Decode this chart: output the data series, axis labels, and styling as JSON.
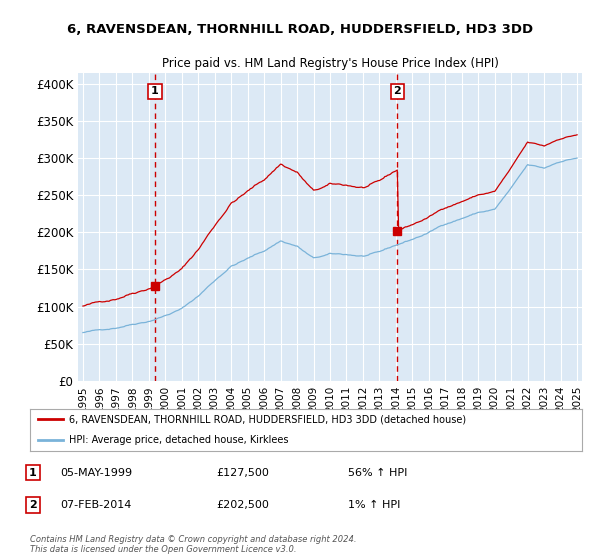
{
  "title1": "6, RAVENSDEAN, THORNHILL ROAD, HUDDERSFIELD, HD3 3DD",
  "title2": "Price paid vs. HM Land Registry's House Price Index (HPI)",
  "ylabel_ticks": [
    "£0",
    "£50K",
    "£100K",
    "£150K",
    "£200K",
    "£250K",
    "£300K",
    "£350K",
    "£400K"
  ],
  "ytick_values": [
    0,
    50000,
    100000,
    150000,
    200000,
    250000,
    300000,
    350000,
    400000
  ],
  "ylim": [
    0,
    415000
  ],
  "xlim_start": 1994.7,
  "xlim_end": 2025.3,
  "xtick_years": [
    1995,
    1996,
    1997,
    1998,
    1999,
    2000,
    2001,
    2002,
    2003,
    2004,
    2005,
    2006,
    2007,
    2008,
    2009,
    2010,
    2011,
    2012,
    2013,
    2014,
    2015,
    2016,
    2017,
    2018,
    2019,
    2020,
    2021,
    2022,
    2023,
    2024,
    2025
  ],
  "sale1_x": 1999.37,
  "sale1_y": 127500,
  "sale1_label": "1",
  "sale2_x": 2014.09,
  "sale2_y": 202500,
  "sale2_label": "2",
  "legend_line1": "6, RAVENSDEAN, THORNHILL ROAD, HUDDERSFIELD, HD3 3DD (detached house)",
  "legend_line2": "HPI: Average price, detached house, Kirklees",
  "table_row1": [
    "1",
    "05-MAY-1999",
    "£127,500",
    "56% ↑ HPI"
  ],
  "table_row2": [
    "2",
    "07-FEB-2014",
    "£202,500",
    "1% ↑ HPI"
  ],
  "footer": "Contains HM Land Registry data © Crown copyright and database right 2024.\nThis data is licensed under the Open Government Licence v3.0.",
  "plot_bg_color": "#dce9f5",
  "grid_color": "#ffffff",
  "hpi_color": "#7ab3d9",
  "sale_color": "#cc0000",
  "vline_color": "#cc0000",
  "fig_bg_color": "#ffffff"
}
